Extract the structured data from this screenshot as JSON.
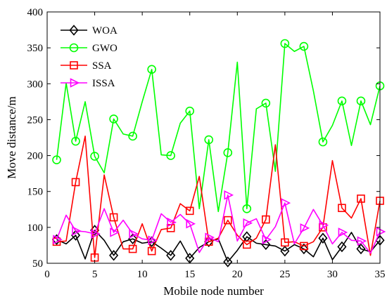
{
  "chart_data": {
    "type": "line",
    "title": "",
    "xlabel": "Mobile node number",
    "ylabel": "Move distance/m",
    "xlim": [
      0,
      35
    ],
    "ylim": [
      50,
      400
    ],
    "xticks": [
      0,
      5,
      10,
      15,
      20,
      25,
      30,
      35
    ],
    "yticks": [
      50,
      100,
      150,
      200,
      250,
      300,
      350,
      400
    ],
    "grid": false,
    "legend_position": "top-left",
    "x": [
      1,
      2,
      3,
      4,
      5,
      6,
      7,
      8,
      9,
      10,
      11,
      12,
      13,
      14,
      15,
      16,
      17,
      18,
      19,
      20,
      21,
      22,
      23,
      24,
      25,
      26,
      27,
      28,
      29,
      30,
      31,
      32,
      33,
      34,
      35
    ],
    "series": [
      {
        "name": "WOA",
        "color": "#000000",
        "marker": "diamond",
        "values": [
          83,
          77,
          89,
          56,
          96,
          82,
          61,
          80,
          84,
          78,
          80,
          71,
          61,
          81,
          57,
          72,
          80,
          84,
          52,
          68,
          87,
          78,
          76,
          74,
          67,
          76,
          70,
          59,
          85,
          55,
          73,
          93,
          70,
          66,
          82
        ]
      },
      {
        "name": "GWO",
        "color": "#00ff00",
        "marker": "circle",
        "values": [
          194,
          301,
          220,
          275,
          199,
          176,
          251,
          230,
          227,
          275,
          320,
          201,
          200,
          245,
          262,
          126,
          222,
          122,
          204,
          330,
          126,
          265,
          273,
          178,
          356,
          345,
          352,
          290,
          219,
          242,
          276,
          214,
          276,
          243,
          297
        ]
      },
      {
        "name": "SSA",
        "color": "#ff0000",
        "marker": "square",
        "values": [
          80,
          81,
          163,
          227,
          58,
          173,
          114,
          70,
          70,
          105,
          67,
          97,
          99,
          133,
          123,
          171,
          80,
          85,
          110,
          89,
          76,
          85,
          111,
          215,
          79,
          80,
          74,
          80,
          100,
          193,
          127,
          113,
          140,
          61,
          137
        ]
      },
      {
        "name": "ISSA",
        "color": "#ff00ff",
        "marker": "triangle-right",
        "values": [
          83,
          117,
          95,
          94,
          91,
          126,
          93,
          110,
          91,
          84,
          82,
          119,
          107,
          118,
          105,
          65,
          86,
          80,
          145,
          81,
          106,
          112,
          83,
          101,
          134,
          77,
          99,
          125,
          103,
          77,
          93,
          82,
          81,
          64,
          94
        ]
      }
    ]
  }
}
